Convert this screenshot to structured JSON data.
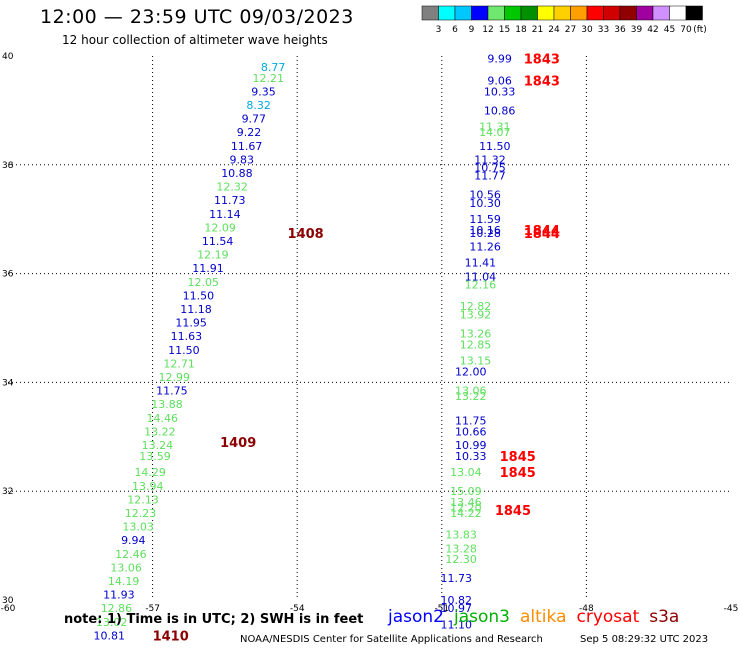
{
  "header": {
    "title": "12:00 — 23:59 UTC 09/03/2023",
    "subtitle": "12 hour collection of altimeter wave heights"
  },
  "colorbar": {
    "unit": "(ft)",
    "colors": [
      "#808080",
      "#00ffff",
      "#00c8ff",
      "#0000ff",
      "#70e870",
      "#00c800",
      "#009000",
      "#ffff00",
      "#ffd000",
      "#ffa000",
      "#ff0000",
      "#d00000",
      "#900000",
      "#a000a0",
      "#d090ff",
      "#ffffff",
      "#000000"
    ],
    "labels": [
      "3",
      "6",
      "9",
      "12",
      "15",
      "18",
      "21",
      "24",
      "27",
      "30",
      "33",
      "36",
      "39",
      "42",
      "45",
      "70"
    ]
  },
  "note": "note:  1) Time is in UTC; 2) SWH is in feet",
  "satellites": [
    {
      "name": "jason2",
      "color": "#0000ff"
    },
    {
      "name": "jason3",
      "color": "#00b000"
    },
    {
      "name": "altika",
      "color": "#ff8c00"
    },
    {
      "name": "cryosat",
      "color": "#ff0000"
    },
    {
      "name": "s3a",
      "color": "#8b0000"
    }
  ],
  "credit": "NOAA/NESDIS Center for Satellite Applications and Research",
  "generated": "Sep  5 08:29:32 UTC 2023",
  "chart_data": {
    "type": "scatter",
    "xlim": [
      -60,
      -45
    ],
    "ylim": [
      30,
      40
    ],
    "xticks": [
      -60,
      -57,
      -54,
      -51,
      -48,
      -45
    ],
    "yticks": [
      30,
      32,
      34,
      36,
      38,
      40
    ],
    "grid": true,
    "colors": {
      "cyan": "#00a8e0",
      "blue": "#0000cc",
      "green": "#5ee05e",
      "red": "#ff0000",
      "darkred": "#8b0000"
    },
    "series": [
      {
        "name": "pass-left",
        "points": [
          {
            "x": -54.5,
            "y": 39.8,
            "v": "8.77",
            "c": "cyan"
          },
          {
            "x": -54.6,
            "y": 39.6,
            "v": "12.21",
            "c": "green"
          },
          {
            "x": -54.7,
            "y": 39.35,
            "v": "9.35",
            "c": "blue"
          },
          {
            "x": -54.8,
            "y": 39.1,
            "v": "8.32",
            "c": "cyan"
          },
          {
            "x": -54.9,
            "y": 38.85,
            "v": "9.77",
            "c": "blue"
          },
          {
            "x": -55.0,
            "y": 38.6,
            "v": "9.22",
            "c": "blue"
          },
          {
            "x": -55.05,
            "y": 38.35,
            "v": "11.67",
            "c": "blue"
          },
          {
            "x": -55.15,
            "y": 38.1,
            "v": "9.83",
            "c": "blue"
          },
          {
            "x": -55.25,
            "y": 37.85,
            "v": "10.88",
            "c": "blue"
          },
          {
            "x": -55.35,
            "y": 37.6,
            "v": "12.32",
            "c": "green"
          },
          {
            "x": -55.4,
            "y": 37.35,
            "v": "11.73",
            "c": "blue"
          },
          {
            "x": -55.5,
            "y": 37.1,
            "v": "11.14",
            "c": "blue"
          },
          {
            "x": -55.6,
            "y": 36.85,
            "v": "12.09",
            "c": "green"
          },
          {
            "x": -55.65,
            "y": 36.6,
            "v": "11.54",
            "c": "blue"
          },
          {
            "x": -55.75,
            "y": 36.35,
            "v": "12.19",
            "c": "green"
          },
          {
            "x": -55.85,
            "y": 36.1,
            "v": "11.91",
            "c": "blue"
          },
          {
            "x": -55.95,
            "y": 35.85,
            "v": "12.05",
            "c": "green"
          },
          {
            "x": -56.05,
            "y": 35.6,
            "v": "11.50",
            "c": "blue"
          },
          {
            "x": -56.1,
            "y": 35.35,
            "v": "11.18",
            "c": "blue"
          },
          {
            "x": -56.2,
            "y": 35.1,
            "v": "11.95",
            "c": "blue"
          },
          {
            "x": -56.3,
            "y": 34.85,
            "v": "11.63",
            "c": "blue"
          },
          {
            "x": -56.35,
            "y": 34.6,
            "v": "11.50",
            "c": "blue"
          },
          {
            "x": -56.45,
            "y": 34.35,
            "v": "12.71",
            "c": "green"
          },
          {
            "x": -56.55,
            "y": 34.1,
            "v": "12.99",
            "c": "green"
          },
          {
            "x": -56.6,
            "y": 33.85,
            "v": "11.75",
            "c": "blue"
          },
          {
            "x": -56.7,
            "y": 33.6,
            "v": "13.88",
            "c": "green"
          },
          {
            "x": -56.8,
            "y": 33.35,
            "v": "14.46",
            "c": "green"
          },
          {
            "x": -56.85,
            "y": 33.1,
            "v": "13.22",
            "c": "green"
          },
          {
            "x": -56.9,
            "y": 32.85,
            "v": "13.24",
            "c": "green"
          },
          {
            "x": -56.95,
            "y": 32.65,
            "v": "13.59",
            "c": "green"
          },
          {
            "x": -57.05,
            "y": 32.35,
            "v": "14.29",
            "c": "green"
          },
          {
            "x": -57.1,
            "y": 32.1,
            "v": "13.94",
            "c": "green"
          },
          {
            "x": -57.2,
            "y": 31.85,
            "v": "12.13",
            "c": "green"
          },
          {
            "x": -57.25,
            "y": 31.6,
            "v": "12.23",
            "c": "green"
          },
          {
            "x": -57.3,
            "y": 31.35,
            "v": "13.03",
            "c": "green"
          },
          {
            "x": -57.4,
            "y": 31.1,
            "v": "9.94",
            "c": "blue"
          },
          {
            "x": -57.45,
            "y": 30.85,
            "v": "12.46",
            "c": "green"
          },
          {
            "x": -57.55,
            "y": 30.6,
            "v": "13.06",
            "c": "green"
          },
          {
            "x": -57.6,
            "y": 30.35,
            "v": "14.19",
            "c": "green"
          },
          {
            "x": -57.7,
            "y": 30.1,
            "v": "11.93",
            "c": "blue"
          },
          {
            "x": -57.75,
            "y": 29.85,
            "v": "12.86",
            "c": "green"
          },
          {
            "x": -57.85,
            "y": 29.6,
            "v": "13.02",
            "c": "green"
          },
          {
            "x": -57.9,
            "y": 29.35,
            "v": "10.81",
            "c": "blue"
          }
        ]
      },
      {
        "name": "pass-right",
        "points": [
          {
            "x": -49.8,
            "y": 39.95,
            "v": "9.99",
            "c": "blue"
          },
          {
            "x": -49.8,
            "y": 39.55,
            "v": "9.06",
            "c": "blue"
          },
          {
            "x": -49.8,
            "y": 39.35,
            "v": "10.33",
            "c": "blue"
          },
          {
            "x": -49.8,
            "y": 39.0,
            "v": "10.86",
            "c": "blue"
          },
          {
            "x": -49.9,
            "y": 38.7,
            "v": "11.31",
            "c": "green"
          },
          {
            "x": -49.9,
            "y": 38.6,
            "v": "14.07",
            "c": "green"
          },
          {
            "x": -49.9,
            "y": 38.35,
            "v": "11.50",
            "c": "blue"
          },
          {
            "x": -50.0,
            "y": 38.1,
            "v": "11.32",
            "c": "blue"
          },
          {
            "x": -50.0,
            "y": 37.95,
            "v": "10.75",
            "c": "blue"
          },
          {
            "x": -50.0,
            "y": 37.8,
            "v": "11.77",
            "c": "blue"
          },
          {
            "x": -50.1,
            "y": 37.45,
            "v": "10.56",
            "c": "blue"
          },
          {
            "x": -50.1,
            "y": 37.3,
            "v": "10.30",
            "c": "blue"
          },
          {
            "x": -50.1,
            "y": 37.0,
            "v": "11.59",
            "c": "blue"
          },
          {
            "x": -50.1,
            "y": 36.8,
            "v": "10.16",
            "c": "blue"
          },
          {
            "x": -50.1,
            "y": 36.75,
            "v": "10.28",
            "c": "blue"
          },
          {
            "x": -50.1,
            "y": 36.5,
            "v": "11.26",
            "c": "blue"
          },
          {
            "x": -50.2,
            "y": 36.2,
            "v": "11.41",
            "c": "blue"
          },
          {
            "x": -50.2,
            "y": 35.95,
            "v": "11.04",
            "c": "blue"
          },
          {
            "x": -50.2,
            "y": 35.8,
            "v": "12.16",
            "c": "green"
          },
          {
            "x": -50.3,
            "y": 35.4,
            "v": "12.82",
            "c": "green"
          },
          {
            "x": -50.3,
            "y": 35.25,
            "v": "13.92",
            "c": "green"
          },
          {
            "x": -50.3,
            "y": 34.9,
            "v": "13.26",
            "c": "green"
          },
          {
            "x": -50.3,
            "y": 34.7,
            "v": "12.85",
            "c": "green"
          },
          {
            "x": -50.3,
            "y": 34.4,
            "v": "13.15",
            "c": "green"
          },
          {
            "x": -50.4,
            "y": 34.2,
            "v": "12.00",
            "c": "blue"
          },
          {
            "x": -50.4,
            "y": 33.85,
            "v": "13.06",
            "c": "green"
          },
          {
            "x": -50.4,
            "y": 33.75,
            "v": "13.22",
            "c": "green"
          },
          {
            "x": -50.4,
            "y": 33.3,
            "v": "11.75",
            "c": "blue"
          },
          {
            "x": -50.4,
            "y": 33.1,
            "v": "10.66",
            "c": "blue"
          },
          {
            "x": -50.4,
            "y": 32.85,
            "v": "10.99",
            "c": "blue"
          },
          {
            "x": -50.4,
            "y": 32.65,
            "v": "10.33",
            "c": "blue"
          },
          {
            "x": -50.5,
            "y": 32.35,
            "v": "13.04",
            "c": "green"
          },
          {
            "x": -50.5,
            "y": 32.0,
            "v": "15.09",
            "c": "green"
          },
          {
            "x": -50.5,
            "y": 31.8,
            "v": "13.46",
            "c": "green"
          },
          {
            "x": -50.5,
            "y": 31.7,
            "v": "12.20",
            "c": "green"
          },
          {
            "x": -50.5,
            "y": 31.6,
            "v": "14.22",
            "c": "green"
          },
          {
            "x": -50.6,
            "y": 31.2,
            "v": "13.83",
            "c": "green"
          },
          {
            "x": -50.6,
            "y": 30.95,
            "v": "13.28",
            "c": "green"
          },
          {
            "x": -50.6,
            "y": 30.75,
            "v": "12.30",
            "c": "green"
          },
          {
            "x": -50.7,
            "y": 30.4,
            "v": "11.73",
            "c": "blue"
          },
          {
            "x": -50.7,
            "y": 30.0,
            "v": "10.82",
            "c": "blue"
          },
          {
            "x": -50.7,
            "y": 29.85,
            "v": "10.97",
            "c": "blue"
          },
          {
            "x": -50.7,
            "y": 29.55,
            "v": "11.10",
            "c": "blue"
          }
        ]
      }
    ],
    "time_labels": [
      {
        "x": -54.2,
        "y": 36.75,
        "t": "1408",
        "c": "darkred"
      },
      {
        "x": -55.6,
        "y": 32.9,
        "t": "1409",
        "c": "darkred"
      },
      {
        "x": -57.0,
        "y": 29.35,
        "t": "1410",
        "c": "darkred"
      },
      {
        "x": -49.3,
        "y": 39.95,
        "t": "1843",
        "c": "red"
      },
      {
        "x": -49.3,
        "y": 39.55,
        "t": "1843",
        "c": "red"
      },
      {
        "x": -49.3,
        "y": 36.8,
        "t": "1844",
        "c": "red"
      },
      {
        "x": -49.3,
        "y": 36.75,
        "t": "1844",
        "c": "red"
      },
      {
        "x": -49.8,
        "y": 32.65,
        "t": "1845",
        "c": "red"
      },
      {
        "x": -49.8,
        "y": 32.35,
        "t": "1845",
        "c": "red"
      },
      {
        "x": -49.9,
        "y": 31.65,
        "t": "1845",
        "c": "red"
      }
    ]
  }
}
